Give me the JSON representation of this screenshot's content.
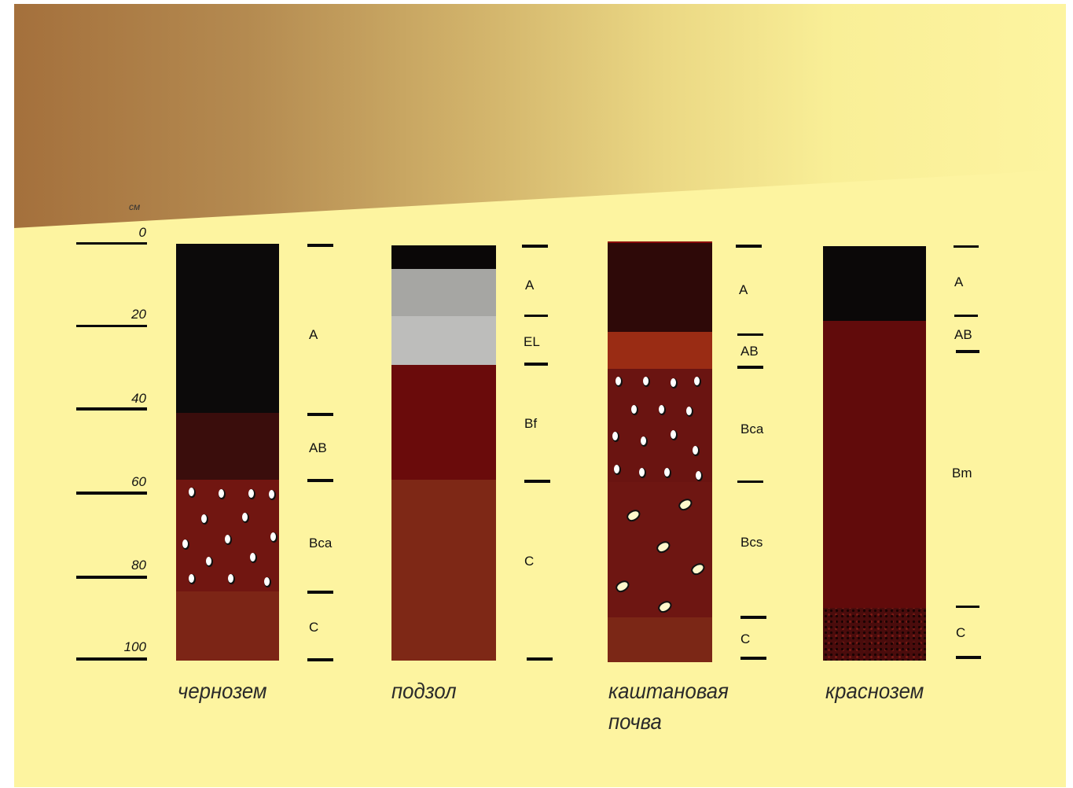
{
  "scale": {
    "unit": "см",
    "ticks": [
      "0",
      "20",
      "40",
      "60",
      "80",
      "100"
    ]
  },
  "profiles": [
    {
      "name": "чернозем",
      "layers": [
        {
          "horizon": "A",
          "from": 0,
          "to": 40,
          "color": "#0c0a0a"
        },
        {
          "horizon": "AB",
          "from": 40,
          "to": 56,
          "color": "#3a0d0c"
        },
        {
          "horizon": "Bca",
          "from": 56,
          "to": 83,
          "color": "#711611"
        },
        {
          "horizon": "C",
          "from": 83,
          "to": 100,
          "color": "#7c2516"
        }
      ]
    },
    {
      "name": "подзол",
      "layers": [
        {
          "horizon": "",
          "from": 0,
          "to": 5,
          "color": "#0a0707"
        },
        {
          "horizon": "A",
          "from": 5,
          "to": 17,
          "color": "#a6a6a3"
        },
        {
          "horizon": "EL",
          "from": 17,
          "to": 29,
          "color": "#bdbdbb"
        },
        {
          "horizon": "Bf",
          "from": 29,
          "to": 56,
          "color": "#6a0b0b"
        },
        {
          "horizon": "C",
          "from": 56,
          "to": 100,
          "color": "#7e2816"
        }
      ]
    },
    {
      "name_lines": [
        "каштановая",
        "почва"
      ],
      "layers": [
        {
          "horizon": "A",
          "from": 0,
          "to": 21,
          "color": "#2e0908"
        },
        {
          "horizon": "AB",
          "from": 21,
          "to": 30,
          "color": "#9a2c14"
        },
        {
          "horizon": "Bca",
          "from": 30,
          "to": 57,
          "color": "#6a1411"
        },
        {
          "horizon": "Bcs",
          "from": 57,
          "to": 90,
          "color": "#6e1612"
        },
        {
          "horizon": "C",
          "from": 90,
          "to": 100,
          "color": "#7b2716"
        }
      ]
    },
    {
      "name": "краснозем",
      "layers": [
        {
          "horizon": "A",
          "from": 0,
          "to": 18,
          "color": "#0b0808"
        },
        {
          "horizon": "AB",
          "from": 18,
          "to": 25,
          "color": "#5f0b0b"
        },
        {
          "horizon": "Bm",
          "from": 25,
          "to": 87,
          "color": "#610b0b"
        },
        {
          "horizon": "C",
          "from": 87,
          "to": 100,
          "color": "#4a0c0c",
          "texture": "grain"
        }
      ]
    }
  ],
  "colors": {
    "background": "#fdf4a0",
    "banner_dark": "#a4703c",
    "ink": "#0a0a0a"
  }
}
